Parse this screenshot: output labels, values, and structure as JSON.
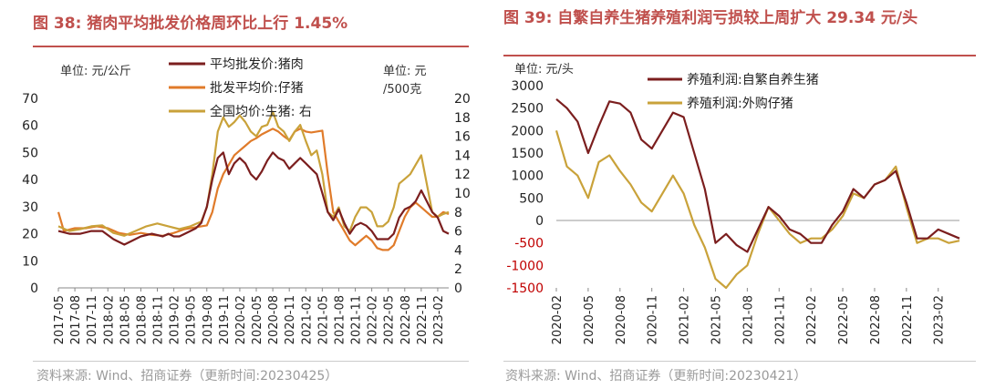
{
  "left": {
    "title": "图 38:  猪肉平均批发价格周环比上行 1.45%",
    "source": "资料来源: Wind、招商证券（更新时间:20230425）",
    "chart_data": {
      "type": "line",
      "unit_left": "单位: 元/公斤",
      "unit_right": "单位: 元/500克",
      "x_tick_labels": [
        "2017-05",
        "2017-08",
        "2017-11",
        "2018-02",
        "2018-05",
        "2018-08",
        "2018-11",
        "2019-02",
        "2019-05",
        "2019-08",
        "2019-11",
        "2020-02",
        "2020-05",
        "2020-08",
        "2020-11",
        "2021-02",
        "2021-05",
        "2021-08",
        "2021-11",
        "2022-02",
        "2022-05",
        "2022-08",
        "2022-11",
        "2023-02"
      ],
      "ylim_left": [
        0,
        70
      ],
      "ylim_right": [
        0,
        20
      ],
      "y_ticks_left": [
        "0",
        "10",
        "20",
        "30",
        "40",
        "50",
        "60",
        "70"
      ],
      "y_ticks_right": [
        "0",
        "2",
        "4",
        "6",
        "8",
        "10",
        "12",
        "14",
        "16",
        "18",
        "20"
      ],
      "legend_placement": "top-center",
      "x_range": [
        "2017-05",
        "2023-04"
      ],
      "series": [
        {
          "name": "平均批发价:猪肉",
          "axis": "left",
          "color": "#7b1e1e",
          "x": [
            "2017-05",
            "2017-07",
            "2017-09",
            "2017-11",
            "2018-01",
            "2018-03",
            "2018-04",
            "2018-05",
            "2018-06",
            "2018-08",
            "2018-10",
            "2018-12",
            "2019-01",
            "2019-02",
            "2019-03",
            "2019-04",
            "2019-05",
            "2019-06",
            "2019-07",
            "2019-08",
            "2019-09",
            "2019-10",
            "2019-11",
            "2019-12",
            "2020-01",
            "2020-02",
            "2020-03",
            "2020-04",
            "2020-05",
            "2020-06",
            "2020-07",
            "2020-08",
            "2020-09",
            "2020-10",
            "2020-11",
            "2020-12",
            "2021-01",
            "2021-02",
            "2021-03",
            "2021-04",
            "2021-05",
            "2021-06",
            "2021-07",
            "2021-08",
            "2021-09",
            "2021-10",
            "2021-11",
            "2021-12",
            "2022-01",
            "2022-02",
            "2022-03",
            "2022-04",
            "2022-05",
            "2022-06",
            "2022-07",
            "2022-08",
            "2022-09",
            "2022-10",
            "2022-11",
            "2022-12",
            "2023-01",
            "2023-02",
            "2023-03",
            "2023-04"
          ],
          "y": [
            21,
            20,
            20,
            21,
            21,
            18,
            17,
            16,
            17,
            19,
            20,
            19,
            20,
            19,
            19,
            20,
            21,
            22,
            24,
            30,
            40,
            48,
            50,
            42,
            46,
            48,
            46,
            42,
            40,
            43,
            47,
            50,
            48,
            47,
            44,
            46,
            48,
            46,
            44,
            42,
            35,
            28,
            25,
            29,
            24,
            20,
            23,
            24,
            23,
            21,
            18,
            18,
            18,
            20,
            26,
            29,
            30,
            32,
            36,
            32,
            28,
            26,
            21,
            20
          ]
        },
        {
          "name": "批发平均价:仔猪",
          "axis": "right",
          "color": "#e07b2a",
          "x": [
            "2017-05",
            "2017-06",
            "2017-08",
            "2017-10",
            "2017-12",
            "2018-02",
            "2018-04",
            "2018-06",
            "2018-08",
            "2018-10",
            "2018-12",
            "2019-02",
            "2019-04",
            "2019-06",
            "2019-08",
            "2019-09",
            "2019-10",
            "2019-11",
            "2019-12",
            "2020-01",
            "2020-02",
            "2020-03",
            "2020-04",
            "2020-05",
            "2020-06",
            "2020-07",
            "2020-08",
            "2020-09",
            "2020-10",
            "2020-11",
            "2020-12",
            "2021-01",
            "2021-02",
            "2021-03",
            "2021-04",
            "2021-05",
            "2021-06",
            "2021-07",
            "2021-08",
            "2021-09",
            "2021-10",
            "2021-11",
            "2021-12",
            "2022-01",
            "2022-02",
            "2022-03",
            "2022-04",
            "2022-05",
            "2022-06",
            "2022-07",
            "2022-08",
            "2022-09",
            "2022-10",
            "2022-11",
            "2022-12",
            "2023-01",
            "2023-02",
            "2023-03",
            "2023-04"
          ],
          "y": [
            8,
            6,
            6.3,
            6.3,
            6.5,
            6.3,
            5.8,
            5.6,
            5.8,
            5.6,
            5.5,
            5.8,
            6.2,
            6.4,
            6.6,
            8,
            10.5,
            12,
            13,
            14,
            14.5,
            15,
            15.5,
            15.8,
            16.2,
            16.5,
            16.8,
            16.5,
            16,
            15.6,
            16.5,
            16.8,
            16.5,
            16.4,
            16.5,
            16.6,
            12,
            8,
            7,
            6,
            5,
            4.5,
            5,
            5.5,
            5,
            4.2,
            4,
            4,
            4.5,
            6,
            7.5,
            8.5,
            9,
            8.5,
            8,
            7.5,
            7.5,
            8,
            7.8
          ]
        },
        {
          "name": "全国均价:生猪: 右",
          "axis": "right",
          "color": "#c9a23a",
          "x": [
            "2017-05",
            "2017-07",
            "2017-09",
            "2017-11",
            "2018-01",
            "2018-03",
            "2018-05",
            "2018-07",
            "2018-09",
            "2018-11",
            "2019-01",
            "2019-03",
            "2019-05",
            "2019-07",
            "2019-08",
            "2019-09",
            "2019-10",
            "2019-11",
            "2019-12",
            "2020-01",
            "2020-02",
            "2020-03",
            "2020-04",
            "2020-05",
            "2020-06",
            "2020-07",
            "2020-08",
            "2020-09",
            "2020-10",
            "2020-11",
            "2020-12",
            "2021-01",
            "2021-02",
            "2021-03",
            "2021-04",
            "2021-05",
            "2021-06",
            "2021-07",
            "2021-08",
            "2021-09",
            "2021-10",
            "2021-11",
            "2021-12",
            "2022-01",
            "2022-02",
            "2022-03",
            "2022-04",
            "2022-05",
            "2022-06",
            "2022-07",
            "2022-08",
            "2022-09",
            "2022-10",
            "2022-11",
            "2022-12",
            "2023-01",
            "2023-02",
            "2023-03",
            "2023-04"
          ],
          "y": [
            6.5,
            6,
            6.2,
            6.5,
            6.6,
            5.8,
            5.5,
            6,
            6.5,
            6.8,
            6.5,
            6.2,
            6.5,
            7,
            8.5,
            12,
            16.5,
            18,
            17,
            17.5,
            18.2,
            17.5,
            16.5,
            16,
            17,
            17.2,
            18.6,
            17,
            16.5,
            15.5,
            16.5,
            17.2,
            15.5,
            14,
            14.5,
            12,
            8,
            7.5,
            8.5,
            6.5,
            6,
            7.5,
            8.5,
            8.5,
            8,
            6.5,
            6.5,
            7,
            8.5,
            11,
            11.5,
            12,
            13,
            14,
            11,
            8,
            7.5,
            7.8,
            8
          ]
        }
      ]
    }
  },
  "right": {
    "title": "图 39:  自繁自养生猪养殖利润亏损较上周扩大  29.34 元/头",
    "source": "资料来源: Wind、招商证券（更新时间:20230421）",
    "chart_data": {
      "type": "line",
      "unit_left": "单位: 元/头",
      "x_tick_labels": [
        "2020-02",
        "2020-05",
        "2020-08",
        "2020-11",
        "2021-02",
        "2021-05",
        "2021-08",
        "2021-11",
        "2022-02",
        "2022-05",
        "2022-08",
        "2022-11",
        "2023-02"
      ],
      "ylim": [
        -1500,
        3000
      ],
      "y_ticks": [
        "3000",
        "2500",
        "2000",
        "1500",
        "1000",
        "500",
        "0",
        "-500",
        "-1000",
        "-1500"
      ],
      "legend_placement": "top-center",
      "x_range": [
        "2020-02",
        "2023-04"
      ],
      "series": [
        {
          "name": "养殖利润:自繁自养生猪",
          "color": "#7b1e1e",
          "x": [
            "2020-02",
            "2020-03",
            "2020-04",
            "2020-05",
            "2020-06",
            "2020-07",
            "2020-08",
            "2020-09",
            "2020-10",
            "2020-11",
            "2020-12",
            "2021-01",
            "2021-02",
            "2021-03",
            "2021-04",
            "2021-05",
            "2021-06",
            "2021-07",
            "2021-08",
            "2021-09",
            "2021-10",
            "2021-11",
            "2021-12",
            "2022-01",
            "2022-02",
            "2022-03",
            "2022-04",
            "2022-05",
            "2022-06",
            "2022-07",
            "2022-08",
            "2022-09",
            "2022-10",
            "2022-11",
            "2022-12",
            "2023-01",
            "2023-02",
            "2023-03",
            "2023-04"
          ],
          "y": [
            2700,
            2500,
            2200,
            1500,
            2100,
            2650,
            2600,
            2400,
            1800,
            1600,
            2000,
            2400,
            2300,
            1500,
            700,
            -500,
            -300,
            -550,
            -700,
            -200,
            300,
            100,
            -200,
            -300,
            -500,
            -500,
            -100,
            200,
            700,
            500,
            800,
            900,
            1100,
            400,
            -400,
            -400,
            -200,
            -300,
            -400
          ]
        },
        {
          "name": "养殖利润:外购仔猪",
          "color": "#c9a23a",
          "x": [
            "2020-02",
            "2020-03",
            "2020-04",
            "2020-05",
            "2020-06",
            "2020-07",
            "2020-08",
            "2020-09",
            "2020-10",
            "2020-11",
            "2020-12",
            "2021-01",
            "2021-02",
            "2021-03",
            "2021-04",
            "2021-05",
            "2021-06",
            "2021-07",
            "2021-08",
            "2021-09",
            "2021-10",
            "2021-11",
            "2021-12",
            "2022-01",
            "2022-02",
            "2022-03",
            "2022-04",
            "2022-05",
            "2022-06",
            "2022-07",
            "2022-08",
            "2022-09",
            "2022-10",
            "2022-11",
            "2022-12",
            "2023-01",
            "2023-02",
            "2023-03",
            "2023-04"
          ],
          "y": [
            2000,
            1200,
            1000,
            500,
            1300,
            1450,
            1100,
            800,
            400,
            200,
            600,
            1000,
            600,
            -100,
            -600,
            -1300,
            -1500,
            -1200,
            -1000,
            -300,
            300,
            0,
            -300,
            -500,
            -400,
            -400,
            -200,
            100,
            600,
            500,
            800,
            900,
            1200,
            300,
            -500,
            -400,
            -400,
            -500,
            -450
          ]
        }
      ]
    }
  }
}
